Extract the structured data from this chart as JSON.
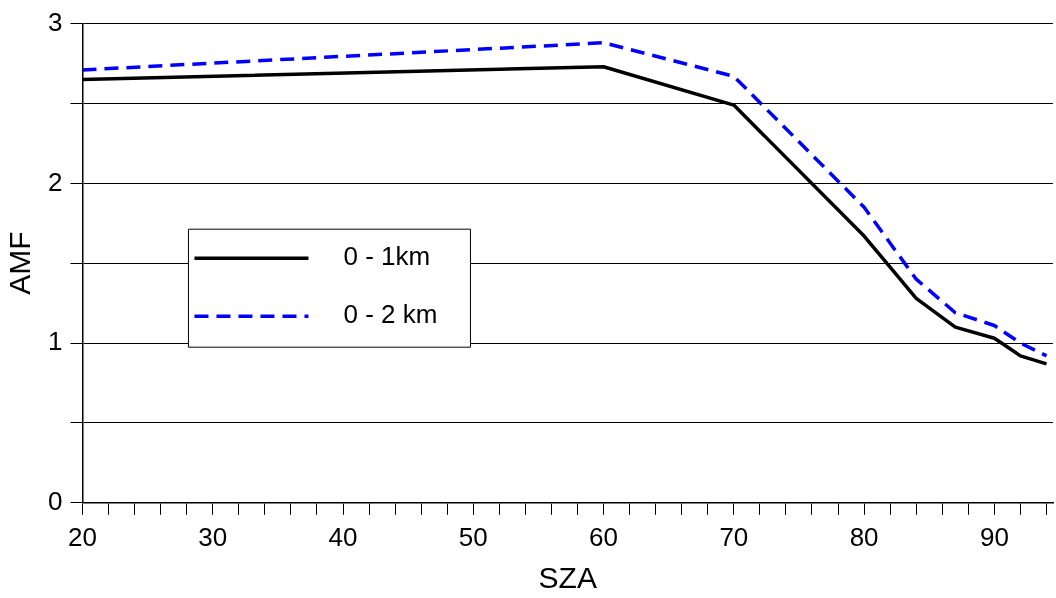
{
  "chart_data": {
    "type": "line",
    "xlabel": "SZA",
    "ylabel": "AMF",
    "xlim": [
      20,
      94.5
    ],
    "xticks": [
      20,
      {
        "value": 22,
        "label": null
      },
      {
        "value": 24,
        "label": null
      },
      {
        "value": 26,
        "label": null
      },
      {
        "value": 28,
        "label": null
      },
      30,
      {
        "value": 32,
        "label": null
      },
      {
        "value": 34,
        "label": null
      },
      {
        "value": 36,
        "label": null
      },
      {
        "value": 38,
        "label": null
      },
      40,
      {
        "value": 42,
        "label": null
      },
      {
        "value": 44,
        "label": null
      },
      {
        "value": 46,
        "label": null
      },
      {
        "value": 48,
        "label": null
      },
      50,
      {
        "value": 52,
        "label": null
      },
      {
        "value": 54,
        "label": null
      },
      {
        "value": 56,
        "label": null
      },
      {
        "value": 58,
        "label": null
      },
      60,
      {
        "value": 62,
        "label": null
      },
      {
        "value": 64,
        "label": null
      },
      {
        "value": 66,
        "label": null
      },
      {
        "value": 68,
        "label": null
      },
      70,
      {
        "value": 72,
        "label": null
      },
      {
        "value": 74,
        "label": null
      },
      {
        "value": 76,
        "label": null
      },
      {
        "value": 78,
        "label": null
      },
      80,
      {
        "value": 82,
        "label": null
      },
      {
        "value": 84,
        "label": null
      },
      {
        "value": 86,
        "label": null
      },
      {
        "value": 88,
        "label": null
      },
      90,
      {
        "value": 92,
        "label": null
      },
      {
        "value": 94,
        "label": null
      }
    ],
    "ylim": [
      0,
      3
    ],
    "yticks": [
      0,
      {
        "value": 0.5,
        "label": null
      },
      1,
      {
        "value": 1.5,
        "label": null
      },
      2,
      {
        "value": 2.5,
        "label": null
      },
      3
    ],
    "grid": "y",
    "legend": "center left",
    "marker": "none",
    "series": [
      {
        "name": "0 - 1km",
        "color": "#000000",
        "line_style": "solid",
        "x": [
          20,
          60,
          70,
          80,
          84,
          87,
          90,
          92,
          94
        ],
        "values": [
          2.65,
          2.73,
          2.49,
          1.67,
          1.28,
          1.1,
          1.03,
          0.92,
          0.87
        ]
      },
      {
        "name": "0 - 2 km",
        "color": "#0000ff",
        "line_style": "dashed",
        "x": [
          20,
          60,
          70,
          80,
          84,
          87,
          90,
          92,
          94
        ],
        "values": [
          2.71,
          2.88,
          2.67,
          1.85,
          1.4,
          1.19,
          1.11,
          1.0,
          0.92
        ]
      }
    ]
  }
}
